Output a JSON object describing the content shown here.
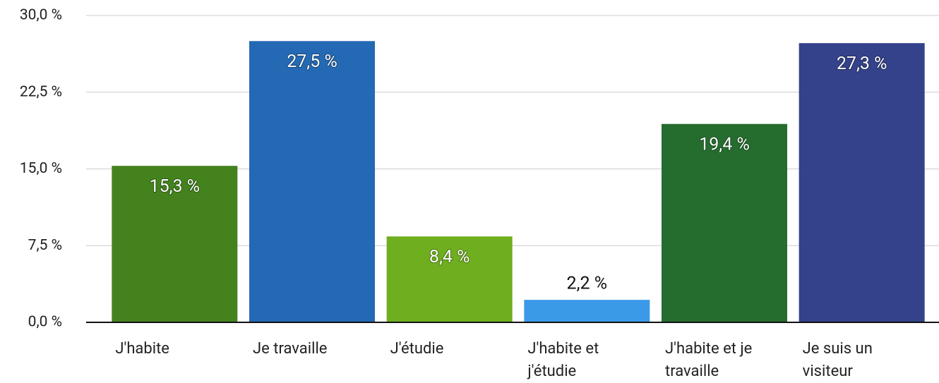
{
  "chart_data": {
    "type": "bar",
    "categories": [
      "J'habite",
      "Je travaille",
      "J'étudie",
      "J'habite et j'étudie",
      "J'habite et je travaille",
      "Je suis un visiteur"
    ],
    "values": [
      15.3,
      27.5,
      8.4,
      2.2,
      19.4,
      27.3
    ],
    "value_labels": [
      "15,3 %",
      "27,5 %",
      "8,4 %",
      "2,2 %",
      "19,4 %",
      "27,3 %"
    ],
    "colors": [
      "#44821e",
      "#2469b3",
      "#6fae1e",
      "#3b9ae8",
      "#256d2f",
      "#33428a"
    ],
    "ylim": [
      0,
      30
    ],
    "yticks": [
      {
        "value": 0,
        "label": "0,0 %"
      },
      {
        "value": 7.5,
        "label": "7,5 %"
      },
      {
        "value": 15,
        "label": "15,0 %"
      },
      {
        "value": 22.5,
        "label": "22,5 %"
      },
      {
        "value": 30,
        "label": "30,0 %"
      }
    ],
    "grid": true
  }
}
